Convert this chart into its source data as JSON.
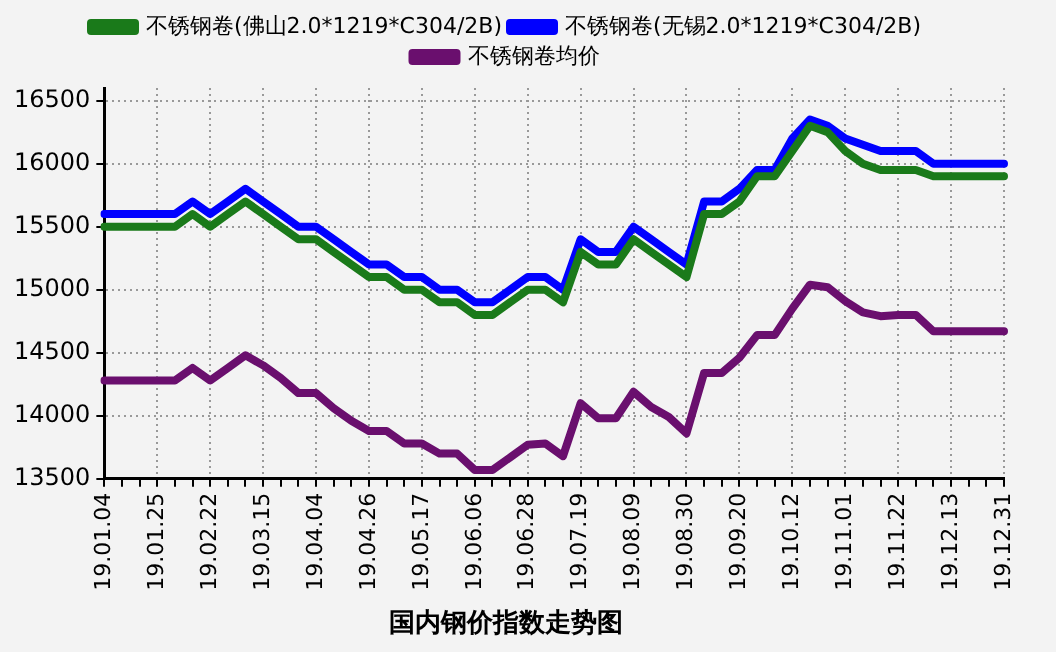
{
  "chart_data": {
    "type": "line",
    "title": "国内钢价指数走势图",
    "categories": [
      "19.01.04",
      null,
      null,
      "19.01.25",
      null,
      null,
      "19.02.22",
      null,
      null,
      "19.03.15",
      null,
      null,
      "19.04.04",
      null,
      null,
      "19.04.26",
      null,
      null,
      "19.05.17",
      null,
      null,
      "19.06.06",
      null,
      null,
      "19.06.28",
      null,
      null,
      "19.07.19",
      null,
      null,
      "19.08.09",
      null,
      null,
      "19.08.30",
      null,
      null,
      "19.09.20",
      null,
      null,
      "19.10.12",
      null,
      null,
      "19.11.01",
      null,
      null,
      "19.11.22",
      null,
      null,
      "19.12.13",
      null,
      null,
      "19.12.31"
    ],
    "series": [
      {
        "name": "不锈钢卷(佛山2.0*1219*C304/2B)",
        "color": "#1a7a1a",
        "values": [
          15500,
          15500,
          15500,
          15500,
          15500,
          15600,
          15500,
          15600,
          15700,
          15600,
          15500,
          15400,
          15400,
          15300,
          15200,
          15100,
          15100,
          15000,
          15000,
          14900,
          14900,
          14800,
          14800,
          14900,
          15000,
          15000,
          14900,
          15300,
          15200,
          15200,
          15400,
          15300,
          15200,
          15100,
          15600,
          15600,
          15700,
          15900,
          15900,
          16100,
          16300,
          16250,
          16100,
          16000,
          15950,
          15950,
          15950,
          15900,
          15900,
          15900,
          15900,
          15900
        ]
      },
      {
        "name": "不锈钢卷(无锡2.0*1219*C304/2B)",
        "color": "#0000ff",
        "values": [
          15600,
          15600,
          15600,
          15600,
          15600,
          15700,
          15600,
          15700,
          15800,
          15700,
          15600,
          15500,
          15500,
          15400,
          15300,
          15200,
          15200,
          15100,
          15100,
          15000,
          15000,
          14900,
          14900,
          15000,
          15100,
          15100,
          15000,
          15400,
          15300,
          15300,
          15500,
          15400,
          15300,
          15200,
          15700,
          15700,
          15800,
          15950,
          15950,
          16200,
          16350,
          16300,
          16200,
          16150,
          16100,
          16100,
          16100,
          16000,
          16000,
          16000,
          16000,
          16000
        ]
      },
      {
        "name": "不锈钢卷均价",
        "color": "#6a0f6e",
        "values": [
          14280,
          14280,
          14280,
          14280,
          14280,
          14380,
          14280,
          14380,
          14480,
          14400,
          14300,
          14180,
          14180,
          14060,
          13960,
          13880,
          13880,
          13780,
          13780,
          13700,
          13700,
          13570,
          13570,
          13670,
          13770,
          13780,
          13680,
          14100,
          13980,
          13980,
          14190,
          14070,
          13990,
          13860,
          14340,
          14340,
          14460,
          14640,
          14640,
          14850,
          15040,
          15020,
          14910,
          14820,
          14790,
          14800,
          14800,
          14670,
          14670,
          14670,
          14670,
          14670
        ]
      }
    ],
    "ylim": [
      13500,
      16600
    ],
    "yticks": [
      13500,
      14000,
      14500,
      15000,
      15500,
      16000,
      16500
    ],
    "grid": true,
    "legend": "top",
    "marker": "none",
    "line_style": "solid"
  }
}
